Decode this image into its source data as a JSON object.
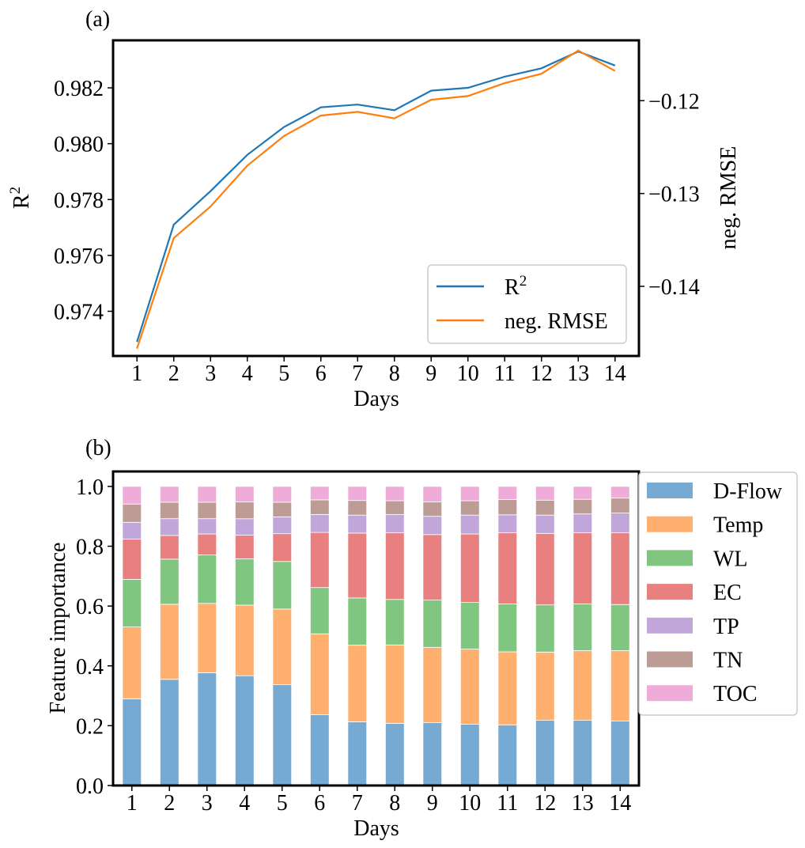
{
  "chart_data": [
    {
      "panel_label": "(a)",
      "type": "line",
      "x": [
        1,
        2,
        3,
        4,
        5,
        6,
        7,
        8,
        9,
        10,
        11,
        12,
        13,
        14
      ],
      "xlabel": "Days",
      "ylabel_left": "R",
      "ylabel_left_sup": "2",
      "ylabel_right": "neg. RMSE",
      "ylim_left": [
        0.9724,
        0.9837
      ],
      "ylim_right": [
        -0.1475,
        -0.1135
      ],
      "yticks_left": [
        0.974,
        0.976,
        0.978,
        0.98,
        0.982
      ],
      "yticks_left_labels": [
        "0.974",
        "0.976",
        "0.978",
        "0.980",
        "0.982"
      ],
      "yticks_right": [
        -0.12,
        -0.13,
        -0.14
      ],
      "yticks_right_labels": [
        "−0.12",
        "−0.13",
        "−0.14"
      ],
      "series": [
        {
          "name": "R",
          "name_sup": "2",
          "axis": "left",
          "color": "#1f77b4",
          "values": [
            0.9729,
            0.9771,
            0.9783,
            0.9796,
            0.9806,
            0.9813,
            0.9814,
            0.9812,
            0.9819,
            0.982,
            0.9824,
            0.9827,
            0.9833,
            0.9828
          ]
        },
        {
          "name": "neg. RMSE",
          "axis": "right",
          "color": "#ff7f0e",
          "values": [
            -0.1467,
            -0.1348,
            -0.1314,
            -0.127,
            -0.1238,
            -0.1216,
            -0.1212,
            -0.1219,
            -0.1199,
            -0.1195,
            -0.1181,
            -0.1171,
            -0.1146,
            -0.1168
          ]
        }
      ],
      "legend": "lower-right",
      "grid": false
    },
    {
      "panel_label": "(b)",
      "type": "bar",
      "stacked": true,
      "categories": [
        "1",
        "2",
        "3",
        "4",
        "5",
        "6",
        "7",
        "8",
        "9",
        "10",
        "11",
        "12",
        "13",
        "14"
      ],
      "xlabel": "Days",
      "ylabel": "Feature importance",
      "ylim": [
        0,
        1.05
      ],
      "yticks": [
        0.0,
        0.2,
        0.4,
        0.6,
        0.8,
        1.0
      ],
      "yticks_labels": [
        "0.0",
        "0.2",
        "0.4",
        "0.6",
        "0.8",
        "1.0"
      ],
      "series": [
        {
          "name": "D-Flow",
          "color": "#77aad2",
          "values": [
            0.29,
            0.355,
            0.377,
            0.367,
            0.337,
            0.237,
            0.213,
            0.208,
            0.21,
            0.205,
            0.202,
            0.218,
            0.218,
            0.216
          ]
        },
        {
          "name": "Temp",
          "color": "#ffb06e",
          "values": [
            0.24,
            0.251,
            0.232,
            0.236,
            0.253,
            0.27,
            0.256,
            0.262,
            0.252,
            0.251,
            0.245,
            0.228,
            0.233,
            0.235
          ]
        },
        {
          "name": "WL",
          "color": "#80c680",
          "values": [
            0.159,
            0.151,
            0.162,
            0.155,
            0.159,
            0.155,
            0.158,
            0.152,
            0.158,
            0.156,
            0.16,
            0.158,
            0.156,
            0.154
          ]
        },
        {
          "name": "EC",
          "color": "#e88080",
          "values": [
            0.135,
            0.079,
            0.07,
            0.079,
            0.093,
            0.184,
            0.217,
            0.223,
            0.219,
            0.229,
            0.238,
            0.239,
            0.238,
            0.24
          ]
        },
        {
          "name": "TP",
          "color": "#c0a6d9",
          "values": [
            0.056,
            0.056,
            0.051,
            0.055,
            0.056,
            0.06,
            0.06,
            0.061,
            0.061,
            0.063,
            0.06,
            0.061,
            0.063,
            0.066
          ]
        },
        {
          "name": "TN",
          "color": "#bc9c95",
          "values": [
            0.061,
            0.055,
            0.055,
            0.056,
            0.049,
            0.049,
            0.049,
            0.046,
            0.048,
            0.048,
            0.051,
            0.05,
            0.049,
            0.05
          ]
        },
        {
          "name": "TOC",
          "color": "#f0acd9",
          "values": [
            0.059,
            0.053,
            0.053,
            0.052,
            0.053,
            0.045,
            0.047,
            0.048,
            0.052,
            0.048,
            0.044,
            0.046,
            0.043,
            0.039
          ]
        }
      ],
      "legend": "outside-right"
    }
  ]
}
